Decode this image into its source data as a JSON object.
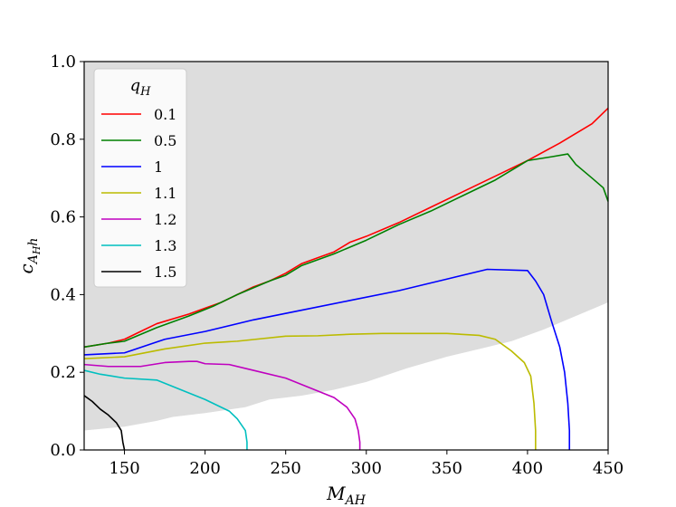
{
  "chart_data": {
    "type": "line",
    "xlabel": "M_AH",
    "xlabel_main": "M",
    "xlabel_sub": "AH",
    "ylabel": "c_{A_H h}",
    "ylabel_main": "c",
    "ylabel_sub": "A",
    "ylabel_subsub": "H",
    "ylabel_tail": "h",
    "xlim": [
      125,
      450
    ],
    "ylim": [
      0.0,
      1.0
    ],
    "x_ticks": [
      150,
      200,
      250,
      300,
      350,
      400,
      450
    ],
    "y_ticks": [
      0.0,
      0.2,
      0.4,
      0.6,
      0.8,
      1.0
    ],
    "x_tick_labels": [
      "150",
      "200",
      "250",
      "300",
      "350",
      "400",
      "450"
    ],
    "y_tick_labels": [
      "0.0",
      "0.2",
      "0.4",
      "0.6",
      "0.8",
      "1.0"
    ],
    "grid": false,
    "legend": {
      "title": "q",
      "title_sub": "H",
      "placement": "upper-left"
    },
    "shaded_region": {
      "color": "#dddddd",
      "lower_boundary": [
        [
          125,
          0.05
        ],
        [
          150,
          0.06
        ],
        [
          170,
          0.075
        ],
        [
          180,
          0.085
        ],
        [
          200,
          0.095
        ],
        [
          225,
          0.11
        ],
        [
          240,
          0.13
        ],
        [
          260,
          0.14
        ],
        [
          280,
          0.155
        ],
        [
          300,
          0.175
        ],
        [
          325,
          0.21
        ],
        [
          350,
          0.24
        ],
        [
          375,
          0.265
        ],
        [
          390,
          0.28
        ],
        [
          410,
          0.31
        ],
        [
          430,
          0.345
        ],
        [
          450,
          0.38
        ]
      ],
      "upper": 1.0
    },
    "series": [
      {
        "name": "0.1",
        "color": "#ff0000",
        "points": [
          [
            125,
            0.265
          ],
          [
            140,
            0.275
          ],
          [
            150,
            0.285
          ],
          [
            160,
            0.305
          ],
          [
            170,
            0.325
          ],
          [
            190,
            0.35
          ],
          [
            200,
            0.365
          ],
          [
            210,
            0.38
          ],
          [
            220,
            0.4
          ],
          [
            230,
            0.42
          ],
          [
            240,
            0.435
          ],
          [
            250,
            0.455
          ],
          [
            260,
            0.48
          ],
          [
            270,
            0.495
          ],
          [
            280,
            0.51
          ],
          [
            290,
            0.535
          ],
          [
            300,
            0.55
          ],
          [
            320,
            0.585
          ],
          [
            340,
            0.625
          ],
          [
            360,
            0.665
          ],
          [
            380,
            0.705
          ],
          [
            400,
            0.745
          ],
          [
            420,
            0.79
          ],
          [
            440,
            0.84
          ],
          [
            450,
            0.88
          ]
        ]
      },
      {
        "name": "0.5",
        "color": "#008000",
        "points": [
          [
            125,
            0.265
          ],
          [
            140,
            0.275
          ],
          [
            150,
            0.28
          ],
          [
            170,
            0.315
          ],
          [
            190,
            0.345
          ],
          [
            205,
            0.37
          ],
          [
            220,
            0.4
          ],
          [
            240,
            0.435
          ],
          [
            250,
            0.45
          ],
          [
            260,
            0.475
          ],
          [
            280,
            0.505
          ],
          [
            300,
            0.54
          ],
          [
            320,
            0.58
          ],
          [
            340,
            0.615
          ],
          [
            360,
            0.655
          ],
          [
            380,
            0.695
          ],
          [
            400,
            0.745
          ],
          [
            415,
            0.755
          ],
          [
            425,
            0.762
          ],
          [
            430,
            0.735
          ],
          [
            440,
            0.7
          ],
          [
            447,
            0.675
          ],
          [
            450,
            0.64
          ]
        ]
      },
      {
        "name": "1",
        "color": "#0000ff",
        "points": [
          [
            125,
            0.245
          ],
          [
            150,
            0.25
          ],
          [
            175,
            0.285
          ],
          [
            200,
            0.305
          ],
          [
            230,
            0.335
          ],
          [
            260,
            0.36
          ],
          [
            290,
            0.385
          ],
          [
            320,
            0.41
          ],
          [
            350,
            0.44
          ],
          [
            375,
            0.465
          ],
          [
            400,
            0.462
          ],
          [
            405,
            0.435
          ],
          [
            410,
            0.4
          ],
          [
            415,
            0.33
          ],
          [
            420,
            0.265
          ],
          [
            423,
            0.2
          ],
          [
            425,
            0.12
          ],
          [
            426,
            0.05
          ],
          [
            426,
            0.0
          ]
        ]
      },
      {
        "name": "1.1",
        "color": "#bbbb00",
        "points": [
          [
            125,
            0.235
          ],
          [
            150,
            0.24
          ],
          [
            175,
            0.26
          ],
          [
            200,
            0.275
          ],
          [
            220,
            0.28
          ],
          [
            250,
            0.293
          ],
          [
            270,
            0.294
          ],
          [
            290,
            0.298
          ],
          [
            310,
            0.3
          ],
          [
            330,
            0.3
          ],
          [
            350,
            0.3
          ],
          [
            370,
            0.295
          ],
          [
            380,
            0.285
          ],
          [
            390,
            0.255
          ],
          [
            398,
            0.225
          ],
          [
            402,
            0.19
          ],
          [
            404,
            0.12
          ],
          [
            405,
            0.05
          ],
          [
            405,
            0.0
          ]
        ]
      },
      {
        "name": "1.2",
        "color": "#bf00bf",
        "points": [
          [
            125,
            0.22
          ],
          [
            140,
            0.215
          ],
          [
            160,
            0.215
          ],
          [
            175,
            0.225
          ],
          [
            190,
            0.228
          ],
          [
            195,
            0.228
          ],
          [
            200,
            0.222
          ],
          [
            215,
            0.22
          ],
          [
            230,
            0.205
          ],
          [
            250,
            0.185
          ],
          [
            265,
            0.16
          ],
          [
            280,
            0.135
          ],
          [
            288,
            0.11
          ],
          [
            293,
            0.08
          ],
          [
            295,
            0.05
          ],
          [
            296,
            0.02
          ],
          [
            296,
            0.0
          ]
        ]
      },
      {
        "name": "1.3",
        "color": "#00bfbf",
        "points": [
          [
            125,
            0.205
          ],
          [
            135,
            0.195
          ],
          [
            150,
            0.185
          ],
          [
            170,
            0.18
          ],
          [
            185,
            0.155
          ],
          [
            200,
            0.13
          ],
          [
            215,
            0.1
          ],
          [
            220,
            0.08
          ],
          [
            225,
            0.05
          ],
          [
            226,
            0.02
          ],
          [
            226,
            0.0
          ]
        ]
      },
      {
        "name": "1.5",
        "color": "#000000",
        "points": [
          [
            125,
            0.14
          ],
          [
            130,
            0.125
          ],
          [
            135,
            0.105
          ],
          [
            140,
            0.09
          ],
          [
            145,
            0.07
          ],
          [
            148,
            0.05
          ],
          [
            149,
            0.02
          ],
          [
            150,
            0.0
          ]
        ]
      }
    ]
  }
}
